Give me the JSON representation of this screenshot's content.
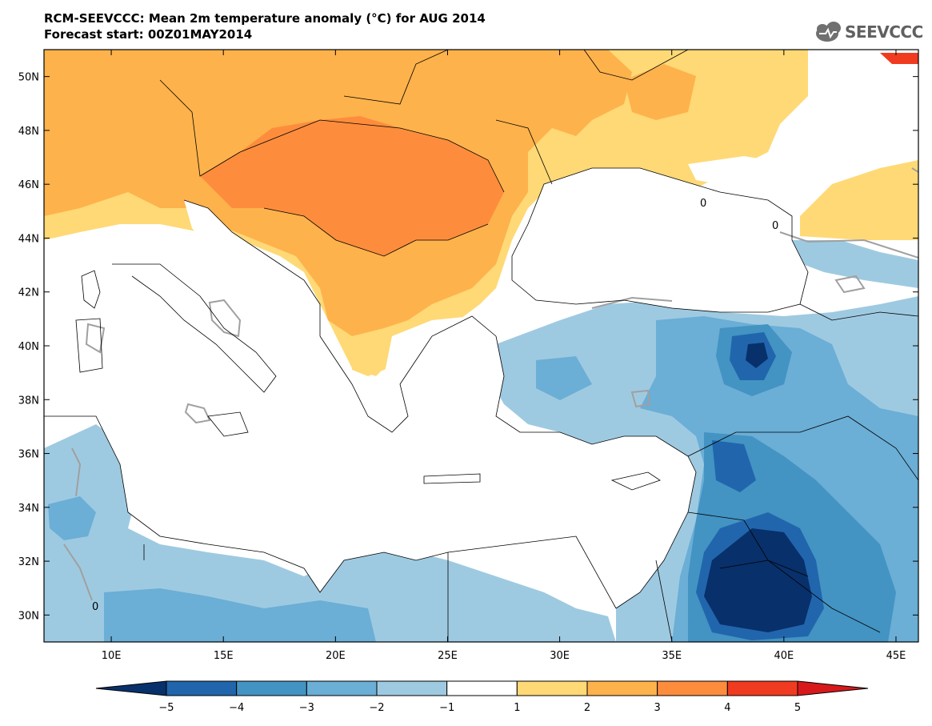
{
  "title": {
    "line1": "RCM-SEEVCCC: Mean 2m temperature anomaly (°C) for AUG 2014",
    "line2": "Forecast start: 00Z01MAY2014"
  },
  "logo": {
    "text": "SEEVCCC",
    "icon": "cloud-icon"
  },
  "map": {
    "lon_range": [
      7,
      46
    ],
    "lat_range": [
      29,
      51
    ],
    "lat_ticks": [
      {
        "value": 50,
        "label": "50N"
      },
      {
        "value": 48,
        "label": "48N"
      },
      {
        "value": 46,
        "label": "46N"
      },
      {
        "value": 44,
        "label": "44N"
      },
      {
        "value": 42,
        "label": "42N"
      },
      {
        "value": 40,
        "label": "40N"
      },
      {
        "value": 38,
        "label": "38N"
      },
      {
        "value": 36,
        "label": "36N"
      },
      {
        "value": 34,
        "label": "34N"
      },
      {
        "value": 32,
        "label": "32N"
      },
      {
        "value": 30,
        "label": "30N"
      }
    ],
    "lon_ticks": [
      {
        "value": 10,
        "label": "10E"
      },
      {
        "value": 15,
        "label": "15E"
      },
      {
        "value": 20,
        "label": "20E"
      },
      {
        "value": 25,
        "label": "25E"
      },
      {
        "value": 30,
        "label": "30E"
      },
      {
        "value": 35,
        "label": "35E"
      },
      {
        "value": 40,
        "label": "40E"
      },
      {
        "value": 45,
        "label": "45E"
      }
    ],
    "contour_labels": [
      "0",
      "0",
      "0"
    ]
  },
  "colorbar": {
    "boundaries": [
      "−5",
      "−4",
      "−3",
      "−2",
      "−1",
      "1",
      "2",
      "3",
      "4",
      "5"
    ],
    "colors": [
      "#08306b",
      "#2166ac",
      "#4393c3",
      "#6baed6",
      "#9ecae1",
      "#ffffff",
      "#fed976",
      "#feb24c",
      "#fd8d3c",
      "#f03b20",
      "#d7191c"
    ]
  },
  "colors": {
    "cold1": "#9ecae1",
    "cold2": "#6baed6",
    "cold3": "#4393c3",
    "cold4": "#2166ac",
    "cold5": "#08306b",
    "warm1": "#fed976",
    "warm2": "#feb24c",
    "warm3": "#fd8d3c",
    "warm4": "#f03b20"
  }
}
